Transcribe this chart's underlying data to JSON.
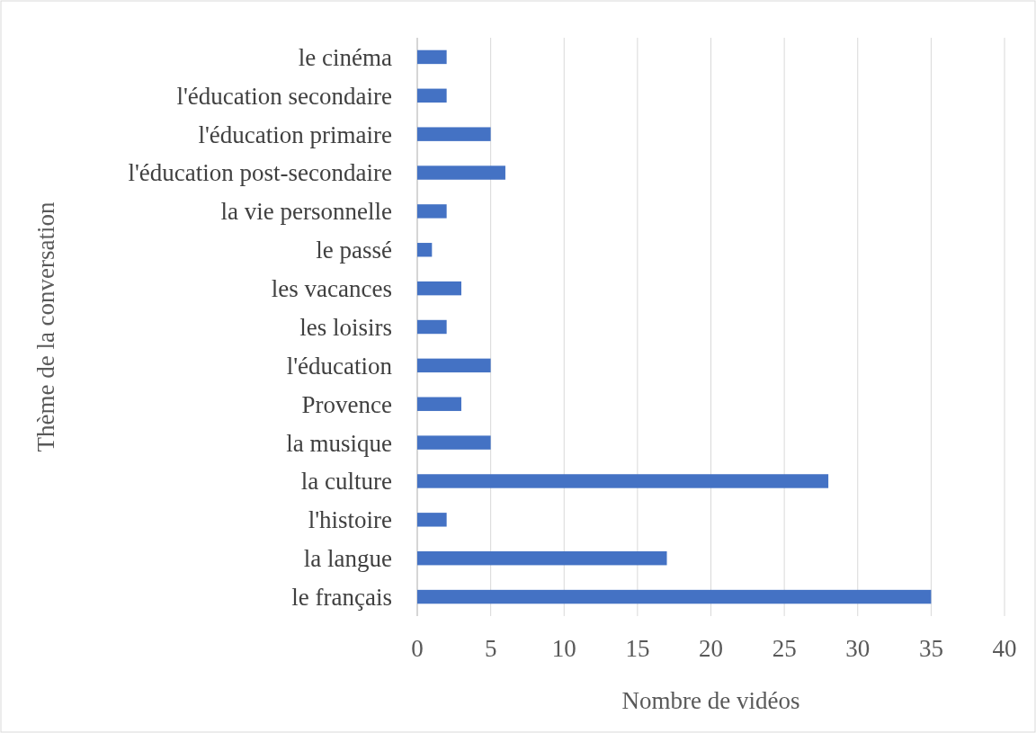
{
  "chart_data": {
    "type": "bar",
    "orientation": "horizontal",
    "xlabel": "Nombre de vidéos",
    "ylabel": "Thème de la conversation",
    "categories": [
      "le cinéma",
      "l'éducation secondaire",
      "l'éducation primaire",
      "l'éducation post-secondaire",
      "la vie personnelle",
      "le passé",
      "les vacances",
      "les loisirs",
      "l'éducation",
      "Provence",
      "la musique",
      "la culture",
      "l'histoire",
      "la langue",
      "le français"
    ],
    "values": [
      2,
      2,
      5,
      6,
      2,
      1,
      3,
      2,
      5,
      3,
      5,
      28,
      2,
      17,
      35
    ],
    "color": "#4472c4",
    "xlim": [
      0,
      40
    ],
    "xticks": [
      0,
      5,
      10,
      15,
      20,
      25,
      30,
      35,
      40
    ],
    "grid": "x"
  }
}
